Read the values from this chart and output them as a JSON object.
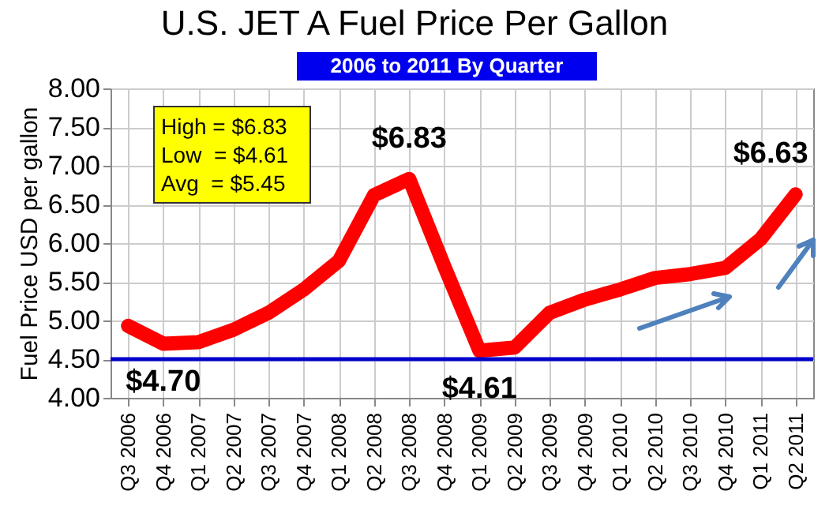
{
  "chart_data": {
    "type": "line",
    "title": "U.S. JET A Fuel Price Per Gallon",
    "subtitle": "2006 to 2011 By Quarter",
    "ylabel": "Fuel Price USD per gallon",
    "categories": [
      "Q3 2006",
      "Q4 2006",
      "Q1 2007",
      "Q2 2007",
      "Q3 2007",
      "Q4 2007",
      "Q1 2008",
      "Q2 2008",
      "Q3 2008",
      "Q4 2008",
      "Q1 2009",
      "Q2 2009",
      "Q3 2009",
      "Q4 2009",
      "Q1 2010",
      "Q2 2010",
      "Q3 2010",
      "Q4 2010",
      "Q1 2011",
      "Q2 2011"
    ],
    "series": [
      {
        "color": "#ff0000",
        "values": [
          4.93,
          4.7,
          4.72,
          4.88,
          5.1,
          5.4,
          5.77,
          6.62,
          6.83,
          5.7,
          4.61,
          4.65,
          5.1,
          5.27,
          5.4,
          5.55,
          5.6,
          5.68,
          6.05,
          6.63
        ]
      }
    ],
    "ylim": [
      4,
      8
    ],
    "yticks": [
      {
        "value": 4,
        "label": "4.00"
      },
      {
        "value": 4.5,
        "label": "4.50"
      },
      {
        "value": 5,
        "label": "5.00"
      },
      {
        "value": 5.5,
        "label": "5.50"
      },
      {
        "value": 6,
        "label": "6.00"
      },
      {
        "value": 6.5,
        "label": "6.50"
      },
      {
        "value": 7,
        "label": "7.00"
      },
      {
        "value": 7.5,
        "label": "7.50"
      },
      {
        "value": 8,
        "label": "8.00"
      }
    ],
    "grid": true,
    "marker": "none",
    "line_style": "solid",
    "ref_lines": [
      {
        "axis": "y",
        "value": 4.5,
        "color": "#0000cc"
      }
    ],
    "annotations": [
      "High = $6.83",
      "Low  = $4.61",
      "Avg  = $5.45",
      {
        "text": "$4.70",
        "x": "Q4 2006",
        "y": 4.7
      },
      {
        "text": "$6.83",
        "x": "Q3 2008",
        "y": 6.83
      },
      {
        "text": "$4.61",
        "x": "Q1 2009",
        "y": 4.61
      },
      {
        "text": "$6.63",
        "x": "Q2 2011",
        "y": 6.63
      }
    ]
  }
}
